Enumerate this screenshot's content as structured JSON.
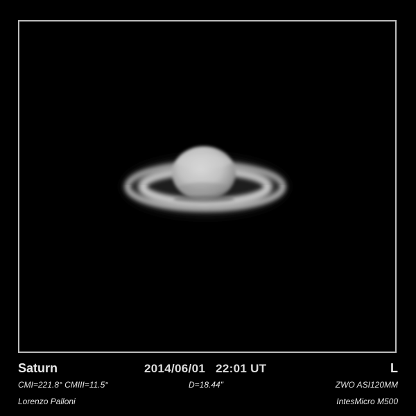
{
  "planet": {
    "name": "Saturn",
    "filter": "L"
  },
  "observation": {
    "date": "2014/06/01",
    "time": "22:01 UT",
    "central_meridians": "CMI=221.8° CMIII=11.5°",
    "diameter": "D=18.44\""
  },
  "equipment": {
    "camera": "ZWO ASI120MM",
    "telescope": "IntesMicro M500"
  },
  "credits": {
    "author": "Lorenzo Palloni"
  },
  "colors": {
    "background": "#000000",
    "frame": "#bdbdbd",
    "text": "#e8e8e8"
  }
}
